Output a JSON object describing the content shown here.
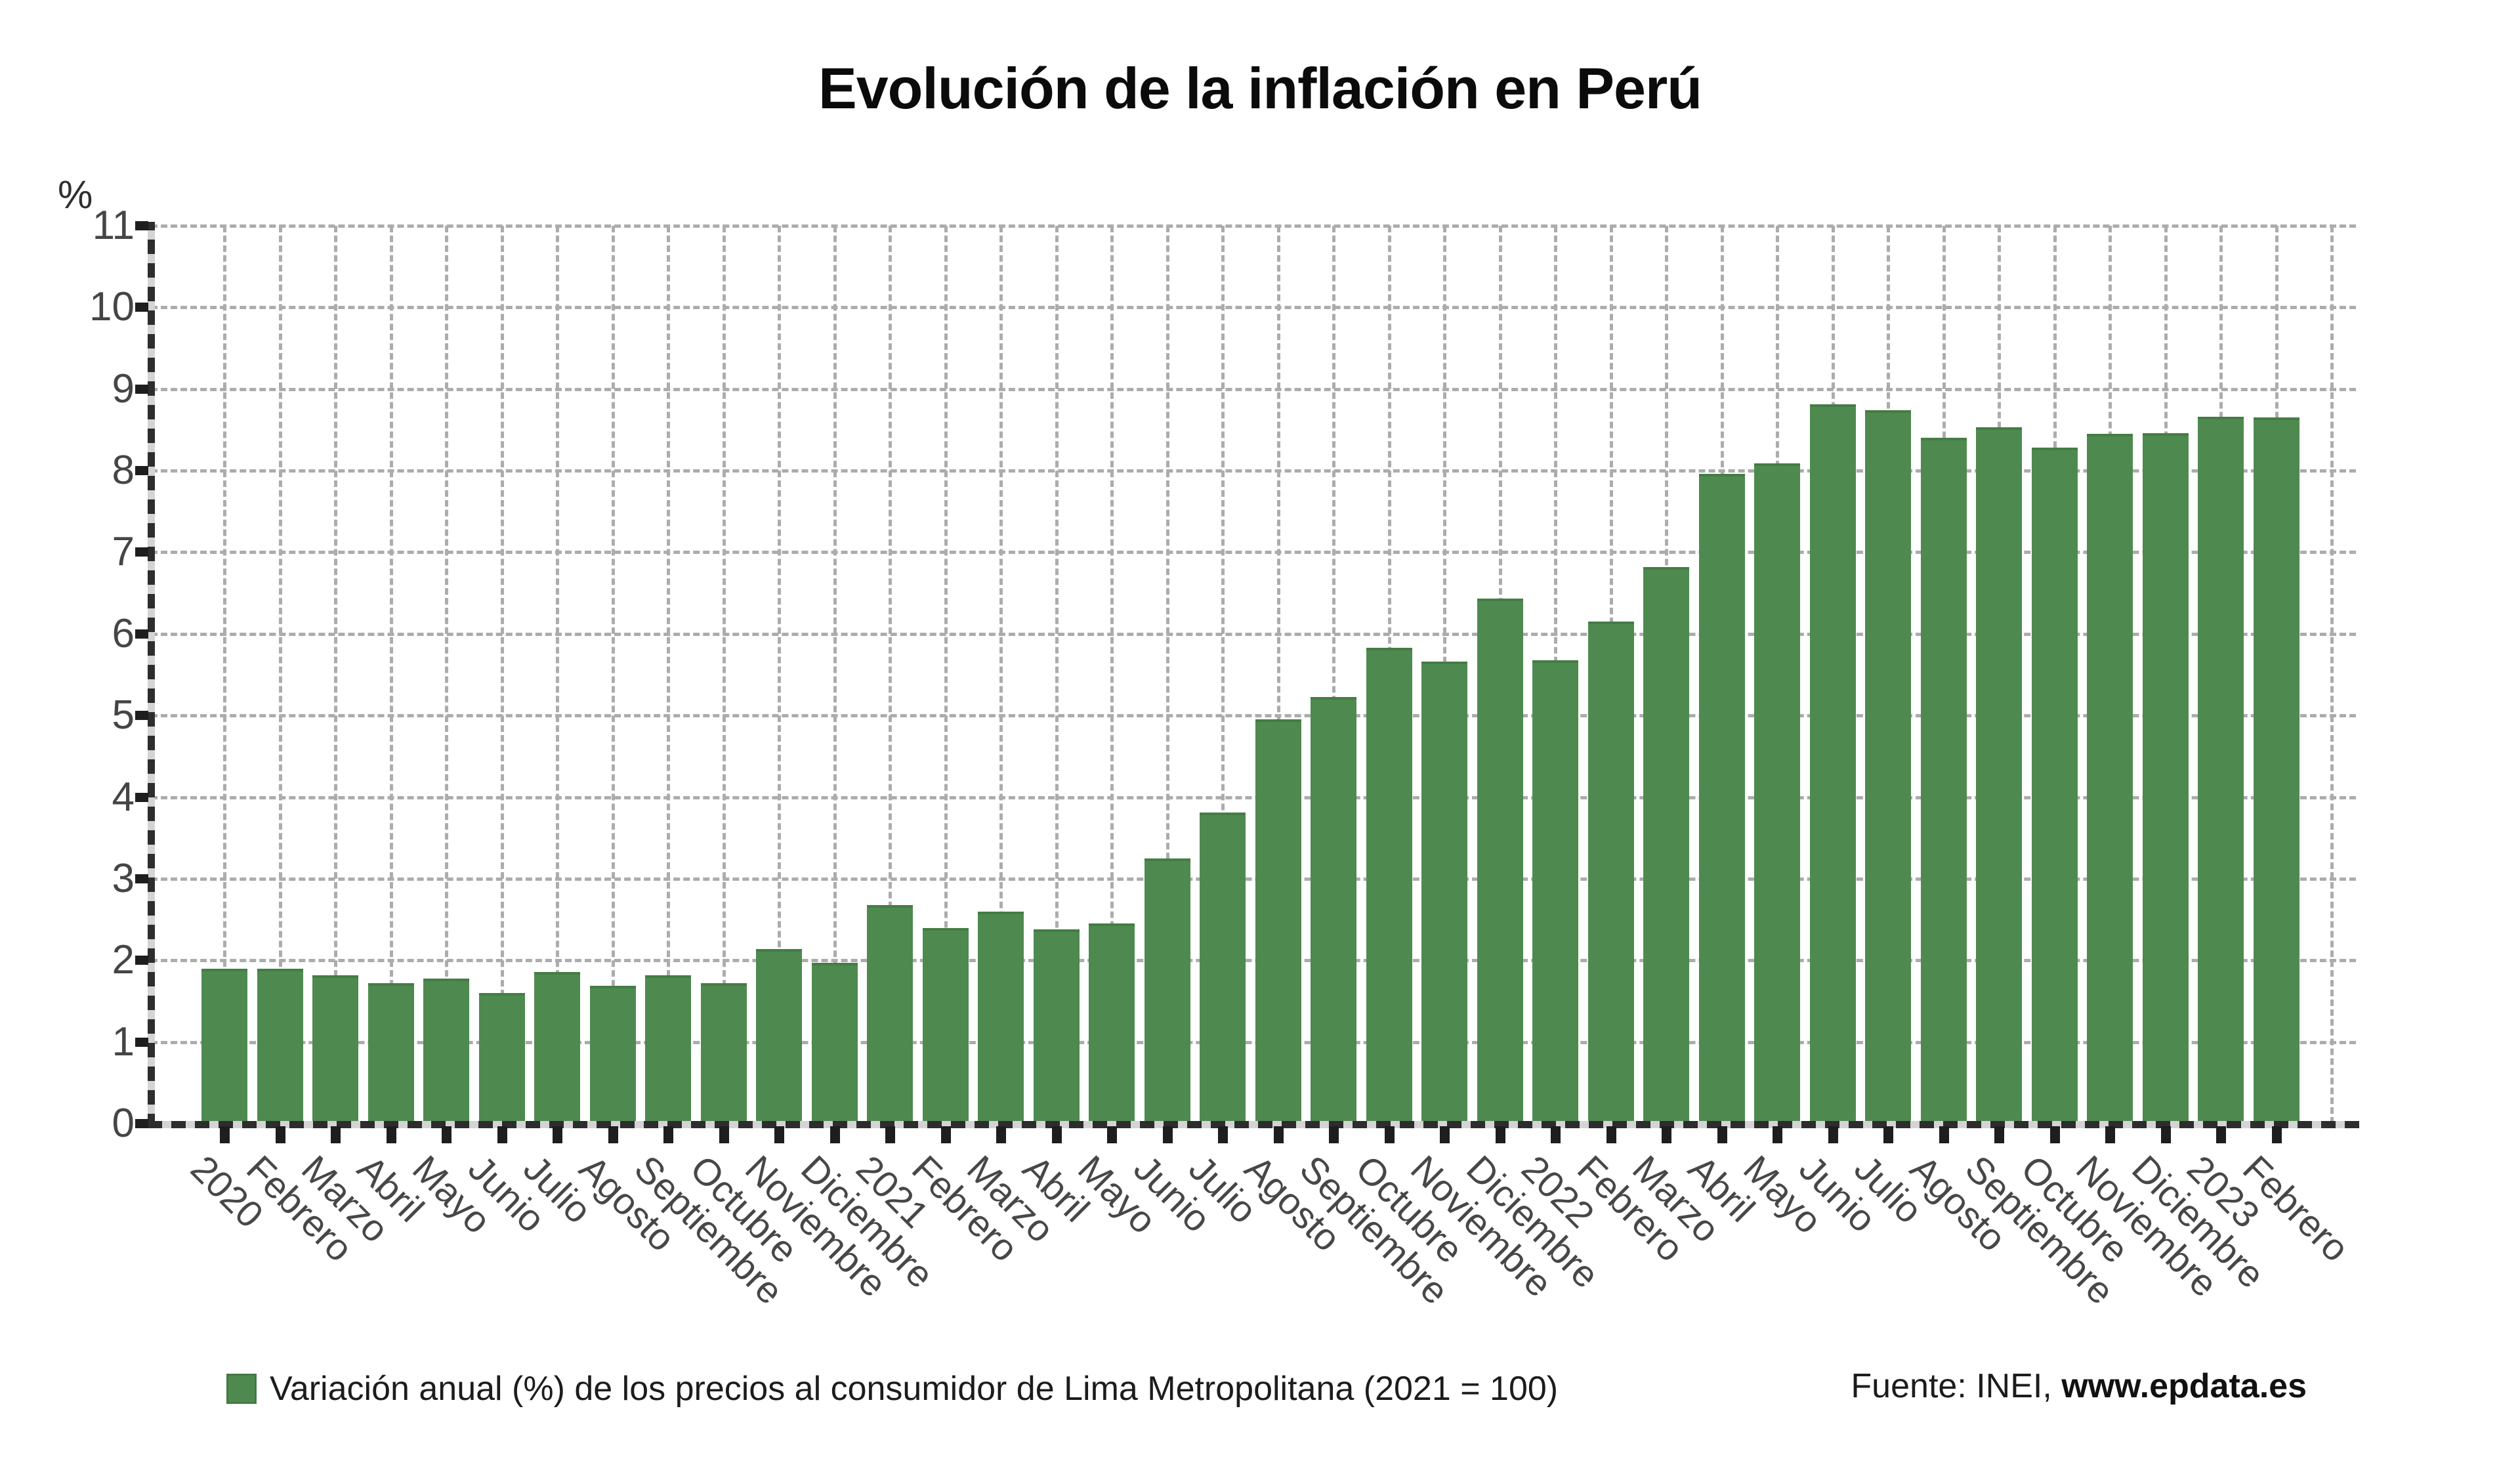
{
  "title": "Evolución de la inflación en Perú",
  "y_axis_unit": "%",
  "legend": {
    "label": "Variación anual (%) de los precios al consumidor de Lima Metropolitana (2021 = 100)"
  },
  "source": {
    "prefix": "Fuente: INEI, ",
    "site": "www.epdata.es"
  },
  "colors": {
    "bar": "#4e8a4f",
    "bar_edge": "#457c45",
    "grid": "#acacac",
    "axis_dark": "#2d2d2d",
    "axis_light": "#d4d4d4",
    "tick_label": "#474747",
    "title": "#0b0b0b"
  },
  "chart_data": {
    "type": "bar",
    "title": "Evolución de la inflación en Perú",
    "xlabel": "",
    "ylabel": "%",
    "ylim": [
      0,
      11
    ],
    "y_ticks": [
      0,
      1,
      2,
      3,
      4,
      5,
      6,
      7,
      8,
      9,
      10,
      11
    ],
    "grid": true,
    "legend_position": "bottom",
    "series_name": "Variación anual (%) de los precios al consumidor de Lima Metropolitana (2021 = 100)",
    "categories": [
      "2020",
      "Febrero",
      "Marzo",
      "Abril",
      "Mayo",
      "Junio",
      "Julio",
      "Agosto",
      "Septiembre",
      "Octubre",
      "Noviembre",
      "Diciembre",
      "2021",
      "Febrero",
      "Marzo",
      "Abril",
      "Mayo",
      "Junio",
      "Julio",
      "Agosto",
      "Septiembre",
      "Octubre",
      "Noviembre",
      "Diciembre",
      "2022",
      "Febrero",
      "Marzo",
      "Abril",
      "Mayo",
      "Junio",
      "Julio",
      "Agosto",
      "Septiembre",
      "Octubre",
      "Noviembre",
      "Diciembre",
      "2023",
      "Febrero"
    ],
    "values": [
      1.9,
      1.9,
      1.82,
      1.72,
      1.78,
      1.6,
      1.86,
      1.69,
      1.82,
      1.72,
      2.14,
      1.97,
      2.68,
      2.4,
      2.6,
      2.38,
      2.45,
      3.25,
      3.81,
      4.95,
      5.23,
      5.83,
      5.66,
      6.43,
      5.68,
      6.15,
      6.82,
      7.96,
      8.09,
      8.81,
      8.74,
      8.4,
      8.53,
      8.28,
      8.45,
      8.46,
      8.66,
      8.65
    ]
  }
}
